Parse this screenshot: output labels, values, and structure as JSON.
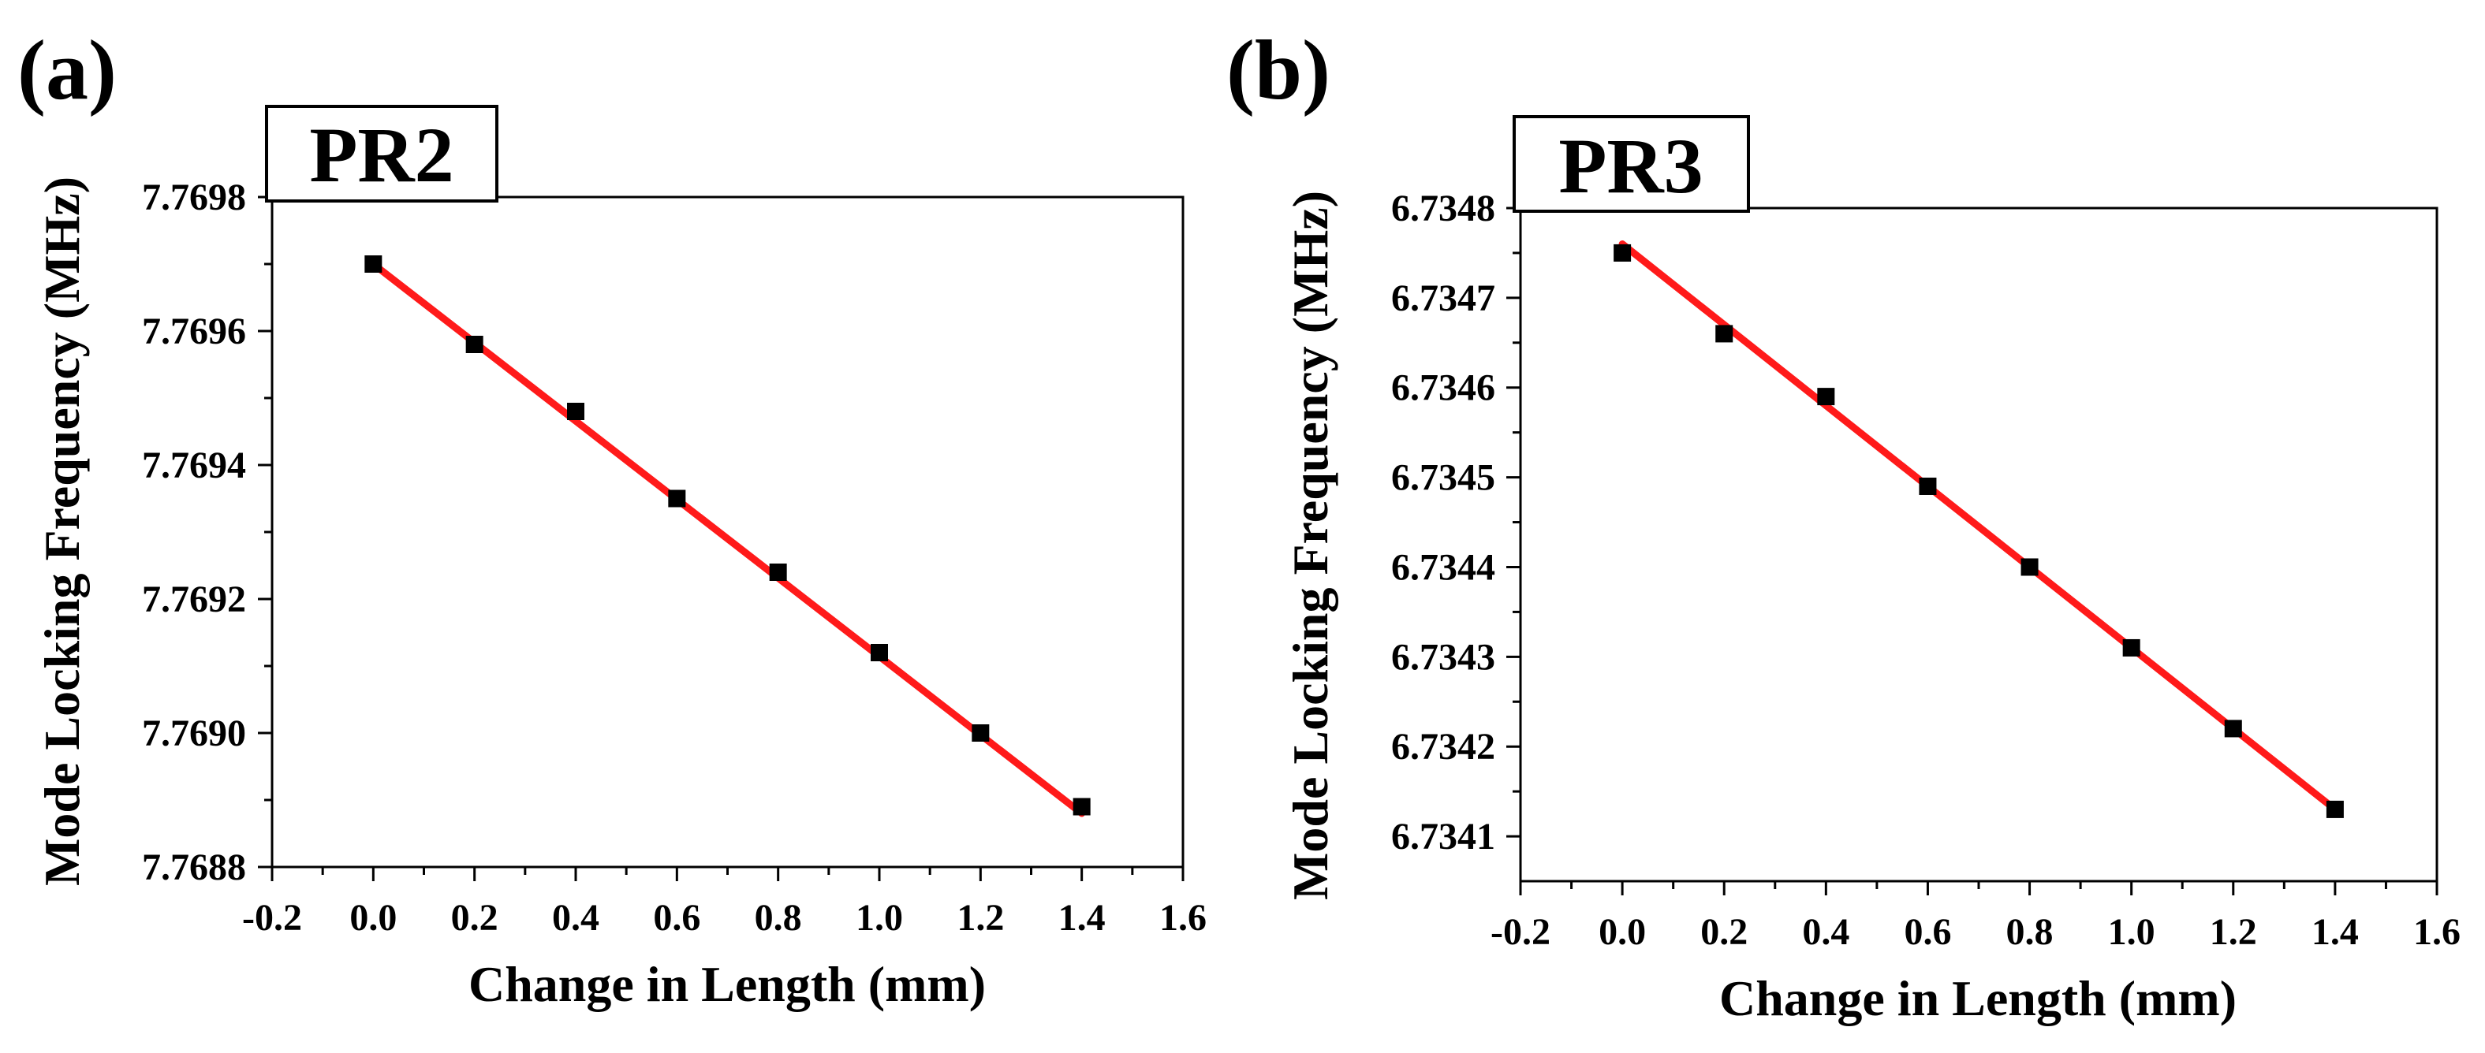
{
  "chart_data": [
    {
      "type": "scatter",
      "panel_label": "(a)",
      "title": "PR2",
      "xlabel": "Change in Length (mm)",
      "ylabel": "Mode Locking Frequency (MHz)",
      "xlim": [
        -0.2,
        1.6
      ],
      "ylim": [
        7.7688,
        7.7698
      ],
      "xticks": [
        -0.2,
        0.0,
        0.2,
        0.4,
        0.6,
        0.8,
        1.0,
        1.2,
        1.4,
        1.6
      ],
      "xtick_labels": [
        "-0.2",
        "0.0",
        "0.2",
        "0.4",
        "0.6",
        "0.8",
        "1.0",
        "1.2",
        "1.4",
        "1.6"
      ],
      "yticks": [
        7.7688,
        7.769,
        7.7692,
        7.7694,
        7.7696,
        7.7698
      ],
      "ytick_labels": [
        "7.7688",
        "7.7690",
        "7.7692",
        "7.7694",
        "7.7696",
        "7.7698"
      ],
      "series": [
        {
          "name": "data",
          "marker": "square",
          "color": "#000000",
          "x": [
            0.0,
            0.2,
            0.4,
            0.6,
            0.8,
            1.0,
            1.2,
            1.4
          ],
          "y": [
            7.7697,
            7.76958,
            7.76948,
            7.76935,
            7.76924,
            7.76912,
            7.769,
            7.76889
          ]
        },
        {
          "name": "linear fit",
          "type": "line",
          "color": "#ff1a1a",
          "x": [
            0.0,
            1.4
          ],
          "y": [
            7.7697,
            7.76888
          ]
        }
      ]
    },
    {
      "type": "scatter",
      "panel_label": "(b)",
      "title": "PR3",
      "xlabel": "Change in Length (mm)",
      "ylabel": "Mode Locking Frequency (MHz)",
      "xlim": [
        -0.2,
        1.6
      ],
      "ylim": [
        6.73405,
        6.7348
      ],
      "xticks": [
        -0.2,
        0.0,
        0.2,
        0.4,
        0.6,
        0.8,
        1.0,
        1.2,
        1.4,
        1.6
      ],
      "xtick_labels": [
        "-0.2",
        "0.0",
        "0.2",
        "0.4",
        "0.6",
        "0.8",
        "1.0",
        "1.2",
        "1.4",
        "1.6"
      ],
      "yticks": [
        6.7341,
        6.7342,
        6.7343,
        6.7344,
        6.7345,
        6.7346,
        6.7347,
        6.7348
      ],
      "ytick_labels": [
        "6.7341",
        "6.7342",
        "6.7343",
        "6.7344",
        "6.7345",
        "6.7346",
        "6.7347",
        "6.7348"
      ],
      "series": [
        {
          "name": "data",
          "marker": "square",
          "color": "#000000",
          "x": [
            0.0,
            0.2,
            0.4,
            0.6,
            0.8,
            1.0,
            1.2,
            1.4
          ],
          "y": [
            6.73475,
            6.73466,
            6.73459,
            6.73449,
            6.7344,
            6.73431,
            6.73422,
            6.73413
          ]
        },
        {
          "name": "linear fit",
          "type": "line",
          "color": "#ff1a1a",
          "x": [
            0.0,
            1.4
          ],
          "y": [
            6.73476,
            6.73413
          ]
        }
      ]
    }
  ]
}
